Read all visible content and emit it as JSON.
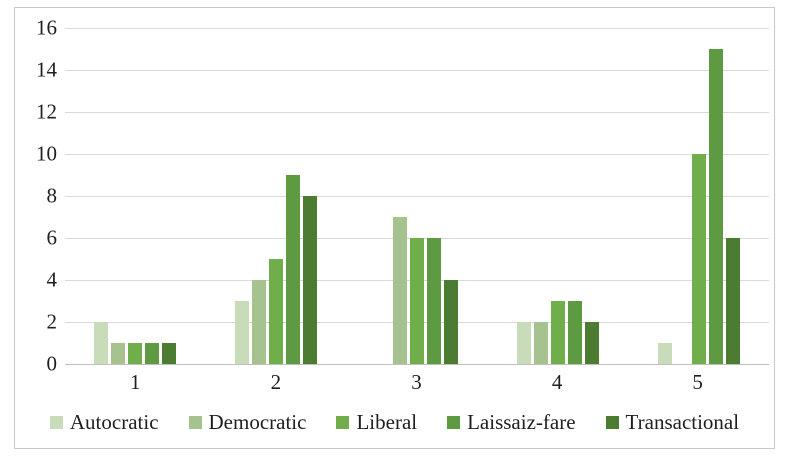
{
  "chart_data": {
    "type": "bar",
    "title": "",
    "xlabel": "",
    "ylabel": "",
    "categories": [
      "1",
      "2",
      "3",
      "4",
      "5"
    ],
    "series": [
      {
        "name": "Autocratic",
        "color": "#c9dcba",
        "values": [
          2,
          3,
          0,
          2,
          1
        ]
      },
      {
        "name": "Democratic",
        "color": "#a6c28e",
        "values": [
          1,
          4,
          7,
          2,
          0
        ]
      },
      {
        "name": "Liberal",
        "color": "#6fae4a",
        "values": [
          1,
          5,
          6,
          3,
          10
        ]
      },
      {
        "name": "Laissaiz-fare",
        "color": "#5e9a42",
        "values": [
          1,
          9,
          6,
          3,
          15
        ]
      },
      {
        "name": "Transactional",
        "color": "#4c7c31",
        "values": [
          1,
          8,
          4,
          2,
          6
        ]
      }
    ],
    "ylim": [
      0,
      16
    ],
    "yticks": [
      0,
      2,
      4,
      6,
      8,
      10,
      12,
      14,
      16
    ],
    "grid": true,
    "legend_position": "bottom"
  },
  "style_colors": {
    "frame_border": "#c9c9c9",
    "gridline": "#d9d9d9",
    "axis_line": "#bfbfbf",
    "text": "#1f1f1f"
  }
}
